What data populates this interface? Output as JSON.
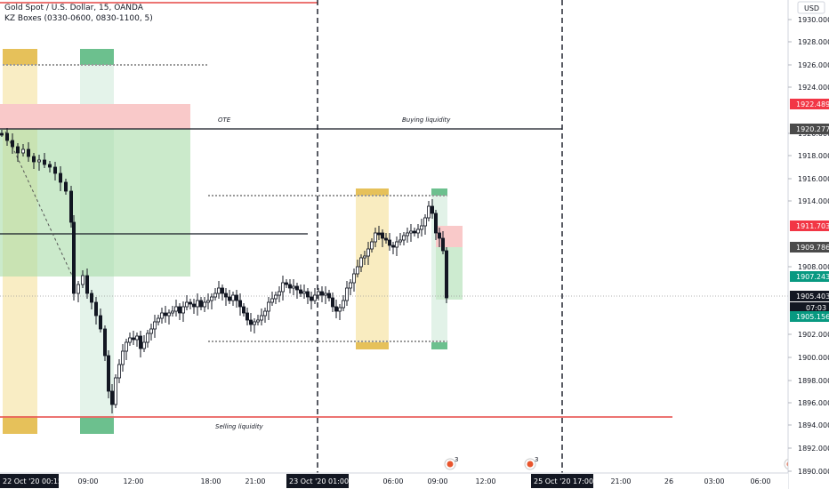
{
  "header": {
    "symbol_line": "Gold Spot / U.S. Dollar, 15, OANDA",
    "indicator_line": "KZ Boxes (0330-0600, 0830-1100, 5)"
  },
  "currency_button": "USD",
  "price_axis": {
    "labels": [
      "1930.000",
      "1928.000",
      "1926.000",
      "1924.000",
      "1920.000",
      "1918.000",
      "1916.000",
      "1914.000",
      "1908.000",
      "1902.000",
      "1900.000",
      "1898.000",
      "1896.000",
      "1894.000",
      "1892.000",
      "1890.000"
    ],
    "tags": [
      {
        "text": "1922.489",
        "color": "#f23645"
      },
      {
        "text": "1920.277",
        "color": "#4a4a4a"
      },
      {
        "text": "1911.703",
        "color": "#f23645"
      },
      {
        "text": "1909.786",
        "color": "#4a4a4a"
      },
      {
        "text": "1907.243",
        "color": "#089981"
      },
      {
        "text": "1905.403",
        "color": "#ffffff"
      },
      {
        "text": "07:03",
        "color": "#ffffff"
      },
      {
        "text": "1905.156",
        "color": "#089981"
      }
    ]
  },
  "time_axis": {
    "labels": [
      "09:00",
      "12:00",
      "18:00",
      "21:00",
      "06:00",
      "09:00",
      "12:00",
      "21:00",
      "26",
      "03:00",
      "06:00"
    ],
    "highlighted": [
      "22 Oct '20   00:15",
      "23 Oct '20   01:00",
      "25 Oct '20   17:00"
    ]
  },
  "annotations": {
    "ote": "OTE",
    "buying_liquidity": "Buying liquidity",
    "selling_liquidity": "Selling liquidity"
  },
  "event_badges": [
    "3",
    "3"
  ],
  "colors": {
    "asia_box": "#f7e7b0",
    "asia_tag": "#e6c15a",
    "london_box": "#dff1e6",
    "london_tag": "#6cc08e",
    "premium_zone": "#f9c9c9",
    "discount_zone": "#a9dca9",
    "red_line": "#e0211f",
    "bull_candle": "#ffffff",
    "bear_candle": "#131722"
  }
}
